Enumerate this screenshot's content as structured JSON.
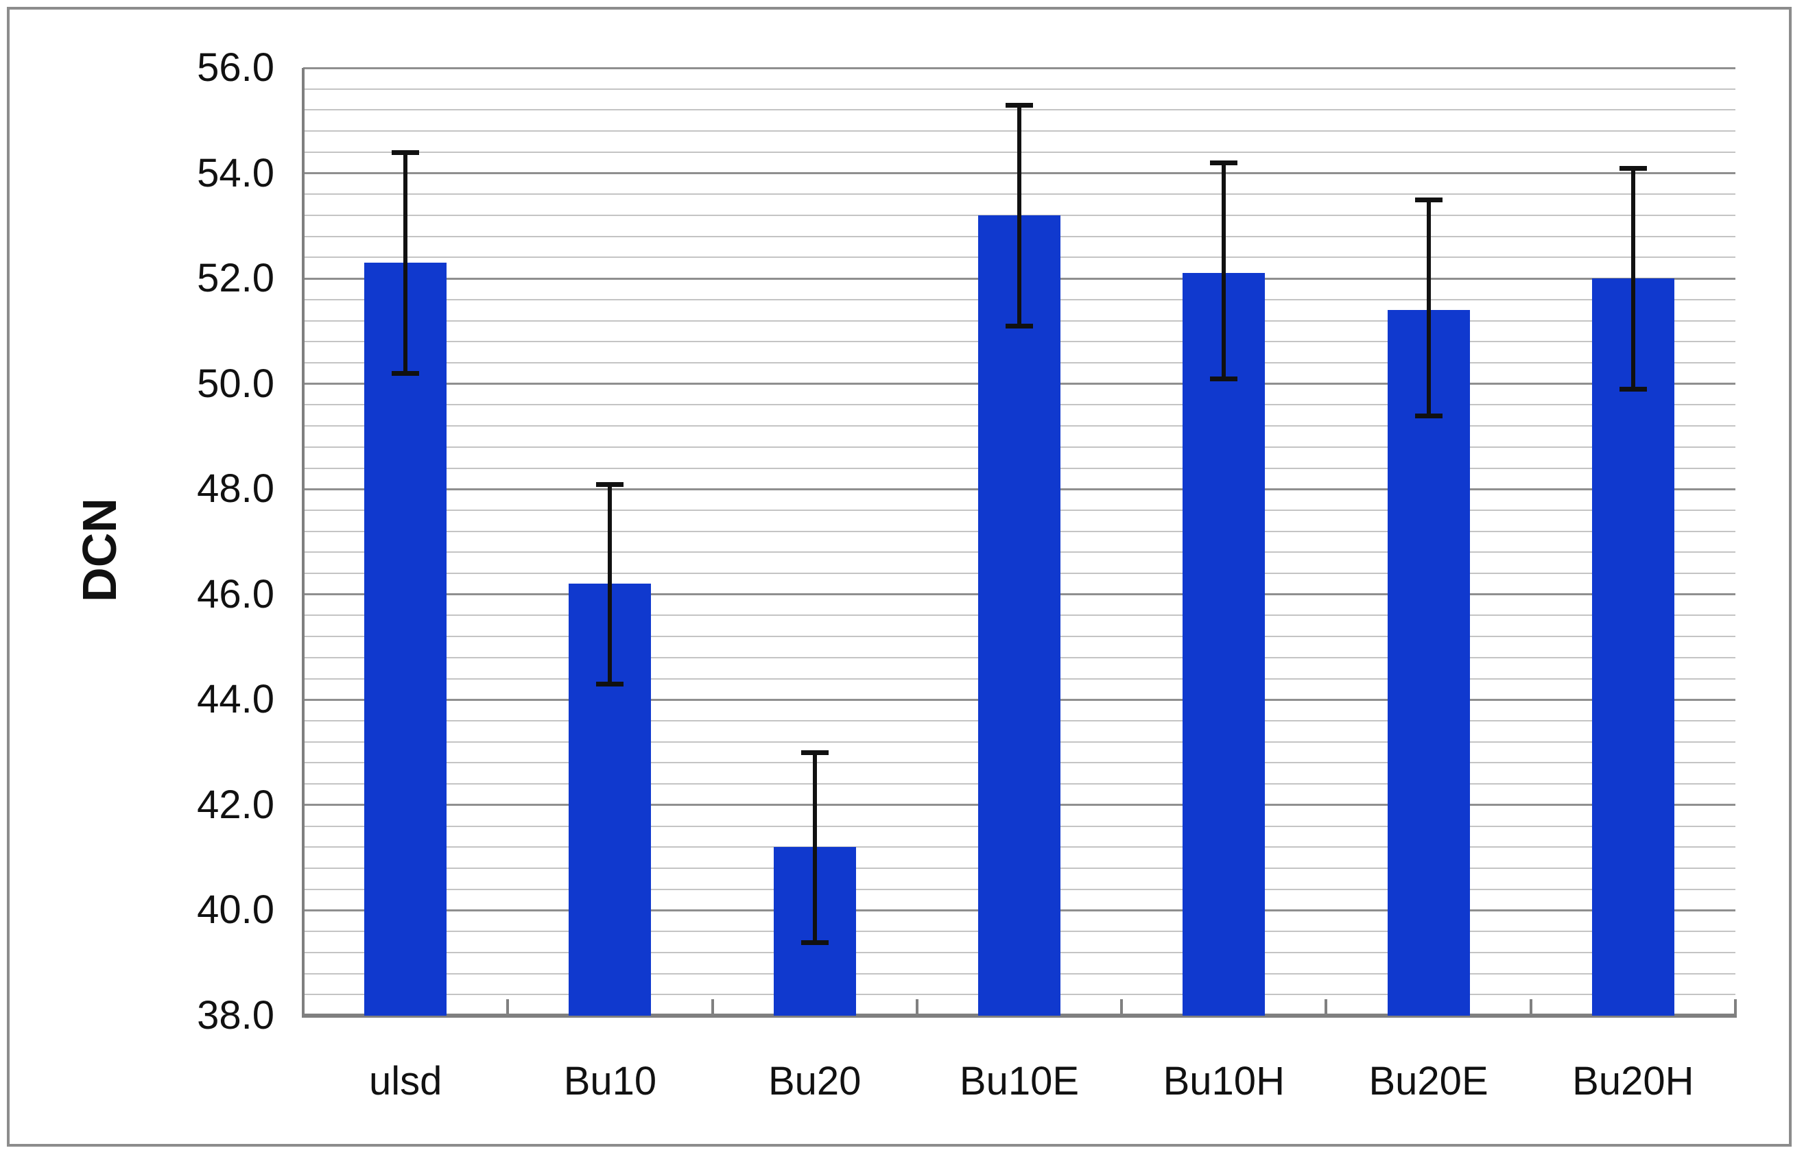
{
  "chart_data": {
    "type": "bar",
    "title": "",
    "xlabel": "",
    "ylabel": "DCN",
    "categories": [
      "ulsd",
      "Bu10",
      "Bu20",
      "Bu10E",
      "Bu10H",
      "Bu20E",
      "Bu20H"
    ],
    "values": [
      52.3,
      46.2,
      41.2,
      53.2,
      52.1,
      51.4,
      52.0
    ],
    "error_bars": {
      "upper": [
        54.4,
        48.1,
        43.0,
        55.3,
        54.2,
        53.5,
        54.1
      ],
      "lower": [
        50.2,
        44.3,
        39.4,
        51.1,
        50.1,
        49.4,
        49.9
      ]
    },
    "ylim": [
      38.0,
      56.0
    ],
    "y_major_step": 2.0,
    "y_minor_step": 0.4,
    "y_tick_labels": [
      "56.0",
      "54.0",
      "52.0",
      "50.0",
      "48.0",
      "46.0",
      "44.0",
      "42.0",
      "40.0",
      "38.0"
    ],
    "grid": "horizontal, minor and major",
    "legend": false,
    "bar_color": "#1039ce",
    "error_bar_color": "#111111",
    "minor_grid_color": "#c4c4c4",
    "major_grid_color": "#8f8f8f",
    "axis_color": "#7f7f7f",
    "figure_border_color": "#8c8c8c"
  }
}
